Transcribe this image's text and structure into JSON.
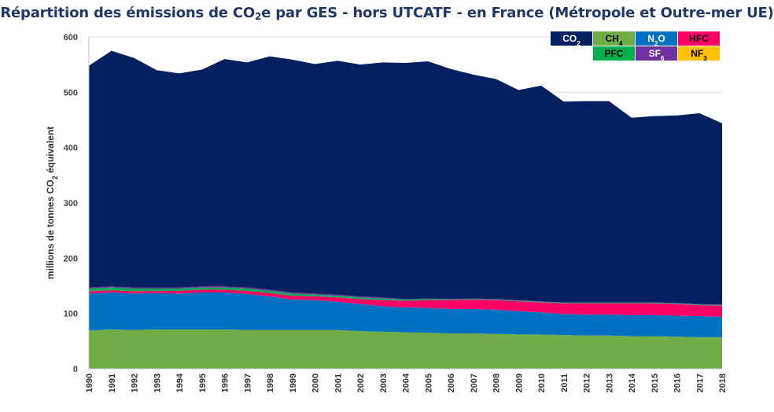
{
  "chart_data": {
    "type": "area",
    "stacked": true,
    "title_parts": [
      "Répartition des émissions de CO",
      "2",
      "e par GES - hors UTCATF - en France (Métropole et Outre-mer UE)"
    ],
    "ylabel_parts": [
      "millions de tonnes CO",
      "2",
      " équivalent"
    ],
    "ylim": [
      0,
      600
    ],
    "yticks": [
      0,
      100,
      200,
      300,
      400,
      500,
      600
    ],
    "grid": true,
    "legend_position": "top-right",
    "x": [
      "1990",
      "1991",
      "1992",
      "1993",
      "1994",
      "1995",
      "1996",
      "1997",
      "1998",
      "1999",
      "2000",
      "2001",
      "2002",
      "2003",
      "2004",
      "2005",
      "2006",
      "2007",
      "2008",
      "2009",
      "2010",
      "2011",
      "2012",
      "2013",
      "2014",
      "2015",
      "2016",
      "2017",
      "2018"
    ],
    "series": [
      {
        "key": "CH4",
        "name_main": "CH",
        "name_sub": "4",
        "color": "#70ad47",
        "text_color": "#000000",
        "values": [
          69,
          71,
          70,
          71,
          71,
          71,
          71,
          70,
          70,
          70,
          70,
          70,
          68,
          67,
          66,
          65,
          64,
          64,
          63,
          62,
          62,
          61,
          60,
          60,
          59,
          59,
          58,
          57,
          57
        ]
      },
      {
        "key": "N2O",
        "name_main": "N",
        "name_sub": "2",
        "name_tail": "O",
        "color": "#0070c0",
        "text_color": "#ffffff",
        "values": [
          67,
          67,
          66,
          66,
          65,
          67,
          67,
          65,
          61,
          55,
          54,
          51,
          49,
          46,
          45,
          45,
          44,
          44,
          44,
          42,
          40,
          38,
          38,
          38,
          38,
          38,
          38,
          38,
          37
        ]
      },
      {
        "key": "HFC",
        "name_main": "HFC",
        "color": "#ff0066",
        "text_color": "#000000",
        "values": [
          4,
          4,
          4,
          4,
          5,
          5,
          5,
          6,
          6,
          7,
          7,
          8,
          9,
          11,
          12,
          14,
          16,
          17,
          17,
          18,
          18,
          19,
          20,
          20,
          21,
          21,
          21,
          20,
          20
        ]
      },
      {
        "key": "PFC",
        "name_main": "PFC",
        "color": "#00b050",
        "text_color": "#000000",
        "values": [
          5,
          5,
          5,
          4,
          4,
          4,
          4,
          4,
          4,
          4,
          3,
          3,
          3,
          3,
          2,
          2,
          1,
          1,
          1,
          1,
          1,
          1,
          1,
          1,
          1,
          1,
          1,
          1,
          1
        ]
      },
      {
        "key": "SF6",
        "name_main": "SF",
        "name_sub": "6",
        "color": "#7030a0",
        "text_color": "#ffffff",
        "values": [
          2,
          2,
          2,
          2,
          2,
          2,
          2,
          2,
          2,
          2,
          2,
          2,
          2,
          2,
          1,
          1,
          1,
          1,
          1,
          1,
          1,
          1,
          1,
          1,
          1,
          1,
          1,
          1,
          1
        ]
      },
      {
        "key": "NF3",
        "name_main": "NF",
        "name_sub": "3",
        "color": "#ffc000",
        "text_color": "#000000",
        "values": [
          0,
          0,
          0,
          0,
          0,
          0,
          0,
          0,
          0,
          0,
          0,
          0,
          0,
          0,
          0,
          0,
          0,
          0,
          0,
          0,
          0,
          0,
          0,
          0,
          0,
          0,
          0,
          0,
          0
        ]
      },
      {
        "key": "CO2",
        "name_main": "CO",
        "name_sub": "2",
        "color": "#002060",
        "text_color": "#ffffff",
        "values": [
          401,
          426,
          415,
          393,
          387,
          392,
          411,
          407,
          422,
          421,
          415,
          423,
          419,
          425,
          427,
          429,
          416,
          405,
          398,
          380,
          390,
          363,
          364,
          364,
          334,
          337,
          339,
          345,
          328
        ]
      }
    ],
    "legend_layout": [
      [
        "CO2",
        "CH4",
        "N2O",
        "HFC"
      ],
      [
        "",
        "PFC",
        "SF6",
        "NF3"
      ]
    ]
  }
}
